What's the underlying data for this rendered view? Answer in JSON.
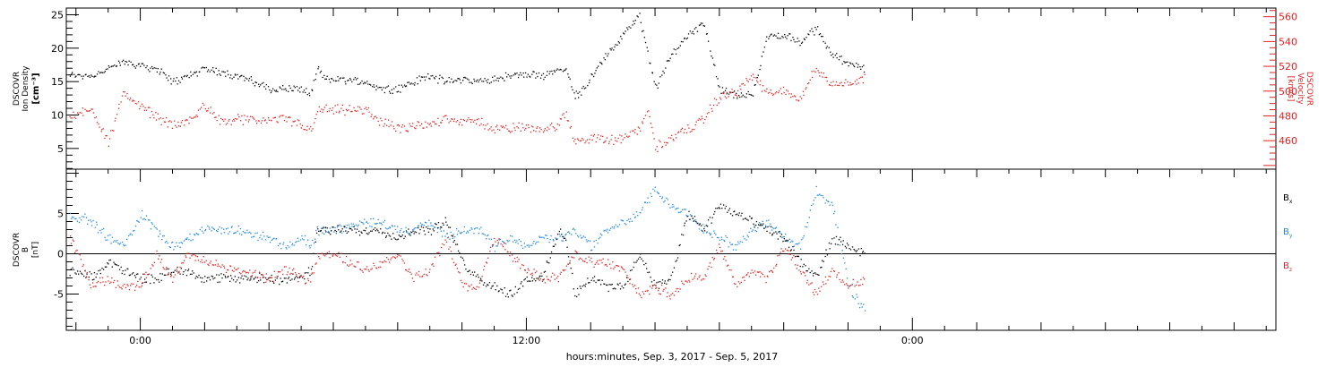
{
  "colors": {
    "black": "#000000",
    "red": "#e32222",
    "blue": "#1e88e5"
  },
  "x_axis": {
    "title": "hours:minutes, Sep.  3, 2017 - Sep.  5, 2017",
    "ticks": [
      {
        "t": 0,
        "label": "0:00"
      },
      {
        "t": 12,
        "label": "12:00"
      },
      {
        "t": 24,
        "label": "0:00"
      }
    ],
    "range_hours": [
      -2.3,
      35.3
    ]
  },
  "chart_data": [
    {
      "type": "scatter",
      "panel": "top",
      "ylabel_left": [
        "DSCOVR",
        "Ion Density",
        "[cm⁻³]"
      ],
      "ylabel_right": [
        "DSCOVR",
        "Velocity",
        "[km/s]"
      ],
      "yticks_left": [
        "5",
        "10",
        "15",
        "20",
        "25"
      ],
      "yticks_right": [
        "460",
        "480",
        "500",
        "520",
        "540",
        "560"
      ],
      "ylim_left": [
        1.9,
        26
      ],
      "ylim_right": [
        437,
        567
      ],
      "series": [
        {
          "axis": "left",
          "color": "#000000",
          "x": [
            -2.2,
            -1.5,
            -1.0,
            -0.5,
            0.5,
            1.0,
            1.5,
            2.0,
            3.0,
            4.0,
            4.5,
            5.0,
            5.3,
            5.5,
            5.7,
            6.0,
            7.0,
            7.5,
            8.0,
            8.5,
            9.0,
            9.5,
            10.0,
            10.5,
            11.0,
            11.5,
            12.0,
            12.5,
            13.0,
            13.2,
            13.5,
            13.8,
            14.0,
            14.5,
            15.0,
            15.5,
            16.0,
            16.2,
            16.5,
            17.0,
            17.5,
            18.0,
            18.5,
            19.0,
            19.5,
            20.0,
            20.5,
            21.0,
            21.5,
            22.0,
            22.5
          ],
          "y": [
            16,
            16,
            17,
            18,
            17,
            15,
            16,
            17,
            16,
            14,
            14,
            14,
            13,
            17,
            15.5,
            15.5,
            15,
            14,
            14,
            15,
            16,
            15,
            15.5,
            15,
            15.5,
            16,
            16,
            16,
            17,
            17,
            13,
            14,
            16,
            19,
            22,
            25,
            14,
            16,
            19,
            22,
            24,
            14,
            13,
            13,
            22,
            22,
            21,
            23,
            19,
            18,
            17
          ]
        },
        {
          "axis": "right",
          "color": "#e32222",
          "x": [
            -2.2,
            -2.0,
            -1.5,
            -1.0,
            -0.5,
            0.0,
            0.5,
            1.0,
            1.5,
            2.0,
            2.5,
            3.0,
            4.0,
            4.5,
            5.0,
            5.3,
            5.5,
            6.0,
            7.0,
            7.5,
            8.0,
            9.0,
            9.5,
            10.0,
            10.5,
            11.0,
            11.5,
            12.0,
            12.5,
            13.0,
            13.2,
            13.5,
            14.0,
            14.5,
            15.0,
            15.5,
            15.8,
            16.0,
            16.5,
            17.0,
            17.5,
            18.0,
            18.5,
            19.0,
            19.5,
            20.0,
            20.5,
            21.0,
            21.5,
            22.0,
            22.5
          ],
          "y": [
            477,
            482,
            485,
            460,
            500,
            487,
            480,
            472,
            476,
            490,
            475,
            477,
            477,
            478,
            473,
            468,
            485,
            485,
            485,
            475,
            470,
            473,
            480,
            475,
            476,
            470,
            470,
            472,
            470,
            473,
            482,
            460,
            463,
            460,
            462,
            470,
            485,
            455,
            462,
            470,
            478,
            496,
            499,
            513,
            498,
            500,
            495,
            519,
            505,
            508,
            510
          ]
        }
      ]
    },
    {
      "type": "scatter",
      "panel": "bottom",
      "ylabel_left": [
        "DSCOVR",
        "B",
        "[nT]"
      ],
      "yticks_left": [
        "-5",
        "0",
        "5"
      ],
      "ylim": [
        -9.5,
        10.5
      ],
      "zero_line": true,
      "legend": [
        {
          "text": "B",
          "sub": "x",
          "color": "#000000"
        },
        {
          "text": "B",
          "sub": "y",
          "color": "#1e88e5"
        },
        {
          "text": "B",
          "sub": "z",
          "color": "#e32222"
        }
      ],
      "series": [
        {
          "name": "Bx",
          "color": "#000000",
          "x": [
            -2.2,
            -1.5,
            -1.0,
            -0.5,
            0.0,
            0.5,
            1.0,
            1.5,
            2.0,
            3.0,
            4.0,
            4.5,
            5.0,
            5.3,
            5.5,
            6.0,
            7.0,
            7.5,
            8.0,
            8.5,
            9.0,
            9.5,
            10.0,
            10.5,
            11.0,
            11.5,
            12.0,
            12.5,
            13.0,
            13.2,
            13.5,
            14.0,
            14.5,
            15.0,
            15.5,
            16.0,
            16.5,
            17.0,
            17.5,
            18.0,
            18.5,
            19.0,
            19.5,
            20.0,
            20.5,
            21.0,
            21.5,
            22.0,
            22.5
          ],
          "y": [
            -2,
            -3,
            -1,
            -2,
            -3,
            -3,
            -2,
            -2,
            -3,
            -3,
            -3,
            -3,
            -3,
            -2,
            3,
            3,
            3,
            3,
            2,
            3,
            3,
            4,
            -1,
            -3,
            -4,
            -5,
            -3,
            -3,
            3,
            2,
            -5,
            -3,
            -4,
            -4,
            0,
            -4,
            -3,
            5,
            3,
            6,
            5,
            4,
            3,
            2,
            -1,
            -3,
            2,
            1,
            0
          ]
        },
        {
          "name": "By",
          "color": "#1e88e5",
          "x": [
            -2.2,
            -1.5,
            -1.0,
            -0.5,
            0.0,
            0.5,
            1.0,
            1.5,
            2.0,
            3.0,
            4.0,
            4.5,
            5.0,
            5.3,
            5.5,
            6.0,
            7.0,
            7.5,
            8.0,
            8.5,
            9.0,
            9.5,
            10.0,
            10.5,
            11.0,
            11.5,
            12.0,
            12.5,
            13.0,
            13.5,
            14.0,
            14.5,
            15.0,
            15.5,
            16.0,
            16.5,
            17.0,
            17.5,
            18.0,
            18.5,
            19.0,
            19.5,
            20.0,
            20.5,
            21.0,
            21.5,
            22.0,
            22.5
          ],
          "y": [
            5,
            4,
            2,
            1,
            5,
            3,
            1,
            2,
            3,
            3,
            2,
            1,
            2,
            1,
            3,
            3,
            4,
            4,
            3,
            3,
            4,
            2,
            3,
            3,
            1,
            2,
            1,
            2,
            2,
            3,
            1,
            3,
            4,
            5,
            8,
            6,
            5,
            3,
            2,
            1,
            3,
            4,
            2,
            1,
            8,
            6,
            -4,
            -7
          ]
        },
        {
          "name": "Bz",
          "color": "#e32222",
          "x": [
            -2.2,
            -1.5,
            -1.0,
            -0.5,
            0.0,
            0.5,
            1.0,
            1.5,
            2.0,
            3.0,
            4.0,
            4.5,
            5.0,
            5.3,
            5.5,
            6.0,
            7.0,
            7.5,
            8.0,
            8.5,
            9.0,
            9.5,
            10.0,
            10.5,
            11.0,
            11.5,
            12.0,
            12.5,
            13.0,
            13.5,
            14.0,
            14.5,
            15.0,
            15.5,
            16.0,
            16.5,
            17.0,
            17.5,
            18.0,
            18.5,
            19.0,
            19.5,
            20.0,
            20.5,
            21.0,
            21.5,
            22.0,
            22.5
          ],
          "y": [
            2,
            -4,
            -3,
            -4,
            -4,
            0,
            -3,
            0,
            -1,
            -2,
            -3,
            -2,
            -3,
            -3,
            0,
            0,
            -2,
            -1,
            0,
            -3,
            -2,
            2,
            -4,
            -4,
            2,
            0,
            -2,
            -3,
            -3,
            0,
            -1,
            -1,
            -2,
            -5,
            -4,
            -5,
            -3,
            -3,
            1,
            -4,
            -2,
            -3,
            1,
            -2,
            -5,
            -2,
            -4,
            -3
          ]
        }
      ]
    }
  ]
}
